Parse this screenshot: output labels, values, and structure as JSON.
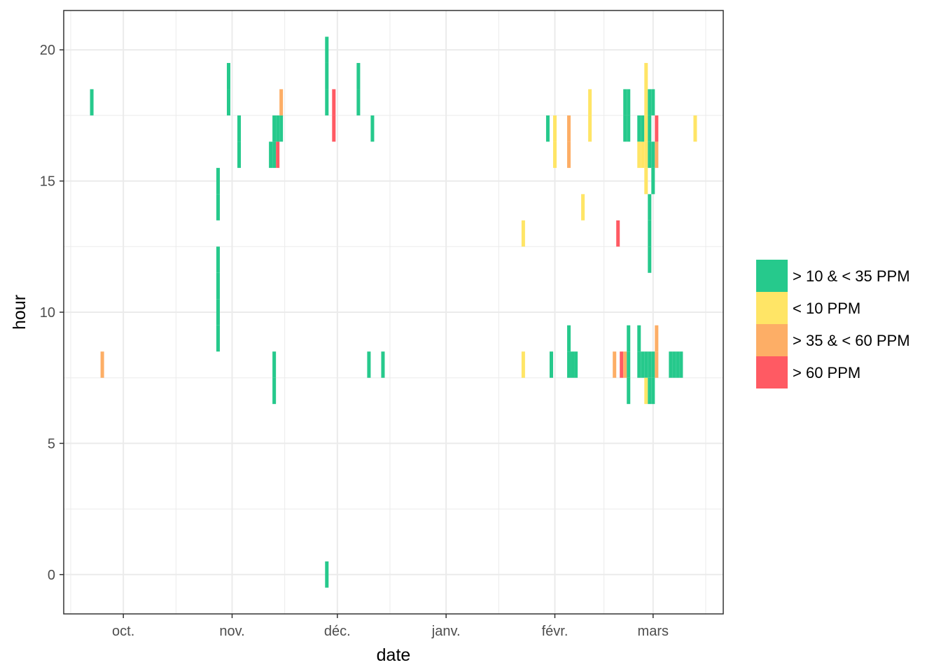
{
  "chart_data": {
    "type": "heatmap",
    "title": "",
    "xlabel": "date",
    "ylabel": "hour",
    "xlim": [
      "2022-09-14",
      "2023-03-21"
    ],
    "ylim": [
      -1.5,
      21.5
    ],
    "bar_height_hours": 1,
    "x_ticks": [
      {
        "date": "2022-10-01",
        "label": "oct."
      },
      {
        "date": "2022-11-01",
        "label": "nov."
      },
      {
        "date": "2022-12-01",
        "label": "déc."
      },
      {
        "date": "2023-01-01",
        "label": "janv."
      },
      {
        "date": "2023-02-01",
        "label": "févr."
      },
      {
        "date": "2023-03-01",
        "label": "mars"
      }
    ],
    "x_minor_ticks": [
      "2022-09-16",
      "2022-10-16",
      "2022-11-16",
      "2022-12-16",
      "2023-01-16",
      "2023-02-15",
      "2023-03-16"
    ],
    "y_ticks": [
      0,
      5,
      10,
      15,
      20
    ],
    "y_minor_ticks": [
      2.5,
      7.5,
      12.5,
      17.5
    ],
    "grid": true,
    "legend_position": "right",
    "categories": [
      {
        "key": "mid",
        "label": "> 10 & < 35 PPM",
        "color": "#26C98C"
      },
      {
        "key": "low",
        "label": "< 10 PPM",
        "color": "#FFE566"
      },
      {
        "key": "high",
        "label": "> 35 & < 60 PPM",
        "color": "#FDAE66"
      },
      {
        "key": "vhigh",
        "label": "> 60 PPM",
        "color": "#FF5A63"
      }
    ],
    "points": [
      {
        "date": "2022-09-22",
        "hours": [
          18
        ],
        "level": "mid"
      },
      {
        "date": "2022-09-25",
        "hours": [
          8
        ],
        "level": "high"
      },
      {
        "date": "2022-10-28",
        "hours": [
          9,
          10,
          11,
          12,
          14,
          15
        ],
        "level": "mid"
      },
      {
        "date": "2022-10-31",
        "hours": [
          18,
          19
        ],
        "level": "mid"
      },
      {
        "date": "2022-11-03",
        "hours": [
          16,
          17
        ],
        "level": "mid"
      },
      {
        "date": "2022-11-12",
        "hours": [
          16
        ],
        "level": "mid"
      },
      {
        "date": "2022-11-13",
        "hours": [
          7,
          8,
          16,
          17
        ],
        "level": "mid"
      },
      {
        "date": "2022-11-14",
        "hours": [
          16
        ],
        "level": "vhigh"
      },
      {
        "date": "2022-11-14",
        "hours": [
          17
        ],
        "level": "mid"
      },
      {
        "date": "2022-11-15",
        "hours": [
          17
        ],
        "level": "mid"
      },
      {
        "date": "2022-11-15",
        "hours": [
          18
        ],
        "level": "high"
      },
      {
        "date": "2022-11-28",
        "hours": [
          0,
          18,
          19,
          20
        ],
        "level": "mid"
      },
      {
        "date": "2022-11-30",
        "hours": [
          17,
          18
        ],
        "level": "vhigh"
      },
      {
        "date": "2022-12-07",
        "hours": [
          18,
          19
        ],
        "level": "mid"
      },
      {
        "date": "2022-12-10",
        "hours": [
          8
        ],
        "level": "mid"
      },
      {
        "date": "2022-12-11",
        "hours": [
          17
        ],
        "level": "mid"
      },
      {
        "date": "2022-12-14",
        "hours": [
          8
        ],
        "level": "mid"
      },
      {
        "date": "2023-01-23",
        "hours": [
          8,
          13
        ],
        "level": "low"
      },
      {
        "date": "2023-01-30",
        "hours": [
          17
        ],
        "level": "mid"
      },
      {
        "date": "2023-01-31",
        "hours": [
          8
        ],
        "level": "mid"
      },
      {
        "date": "2023-02-01",
        "hours": [
          16,
          17
        ],
        "level": "low"
      },
      {
        "date": "2023-02-05",
        "hours": [
          8,
          9
        ],
        "level": "mid"
      },
      {
        "date": "2023-02-05",
        "hours": [
          16,
          17
        ],
        "level": "high"
      },
      {
        "date": "2023-02-06",
        "hours": [
          8
        ],
        "level": "mid"
      },
      {
        "date": "2023-02-07",
        "hours": [
          8
        ],
        "level": "mid"
      },
      {
        "date": "2023-02-09",
        "hours": [
          14
        ],
        "level": "low"
      },
      {
        "date": "2023-02-11",
        "hours": [
          17,
          18
        ],
        "level": "low"
      },
      {
        "date": "2023-02-18",
        "hours": [
          8
        ],
        "level": "high"
      },
      {
        "date": "2023-02-19",
        "hours": [
          13
        ],
        "level": "vhigh"
      },
      {
        "date": "2023-02-20",
        "hours": [
          8
        ],
        "level": "vhigh"
      },
      {
        "date": "2023-02-21",
        "hours": [
          8
        ],
        "level": "high"
      },
      {
        "date": "2023-02-21",
        "hours": [
          17,
          18
        ],
        "level": "mid"
      },
      {
        "date": "2023-02-22",
        "hours": [
          7,
          8,
          9
        ],
        "level": "mid"
      },
      {
        "date": "2023-02-22",
        "hours": [
          17,
          18
        ],
        "level": "mid"
      },
      {
        "date": "2023-02-25",
        "hours": [
          8,
          9,
          17
        ],
        "level": "mid"
      },
      {
        "date": "2023-02-25",
        "hours": [
          16
        ],
        "level": "low"
      },
      {
        "date": "2023-02-26",
        "hours": [
          8
        ],
        "level": "mid"
      },
      {
        "date": "2023-02-26",
        "hours": [
          16
        ],
        "level": "low"
      },
      {
        "date": "2023-02-26",
        "hours": [
          17
        ],
        "level": "mid"
      },
      {
        "date": "2023-02-27",
        "hours": [
          8
        ],
        "level": "mid"
      },
      {
        "date": "2023-02-27",
        "hours": [
          7,
          15,
          16,
          17,
          18,
          19
        ],
        "level": "low"
      },
      {
        "date": "2023-02-28",
        "hours": [
          7,
          12,
          13,
          14,
          16,
          17,
          18
        ],
        "level": "mid"
      },
      {
        "date": "2023-02-28",
        "hours": [
          8
        ],
        "level": "mid"
      },
      {
        "date": "2023-03-01",
        "hours": [
          7,
          15,
          16,
          18
        ],
        "level": "mid"
      },
      {
        "date": "2023-03-01",
        "hours": [
          8
        ],
        "level": "mid"
      },
      {
        "date": "2023-03-02",
        "hours": [
          8,
          9,
          16
        ],
        "level": "high"
      },
      {
        "date": "2023-03-02",
        "hours": [
          17
        ],
        "level": "vhigh"
      },
      {
        "date": "2023-03-06",
        "hours": [
          8
        ],
        "level": "mid"
      },
      {
        "date": "2023-03-07",
        "hours": [
          8
        ],
        "level": "mid"
      },
      {
        "date": "2023-03-08",
        "hours": [
          8
        ],
        "level": "mid"
      },
      {
        "date": "2023-03-09",
        "hours": [
          8
        ],
        "level": "mid"
      },
      {
        "date": "2023-03-13",
        "hours": [
          17
        ],
        "level": "low"
      }
    ]
  }
}
